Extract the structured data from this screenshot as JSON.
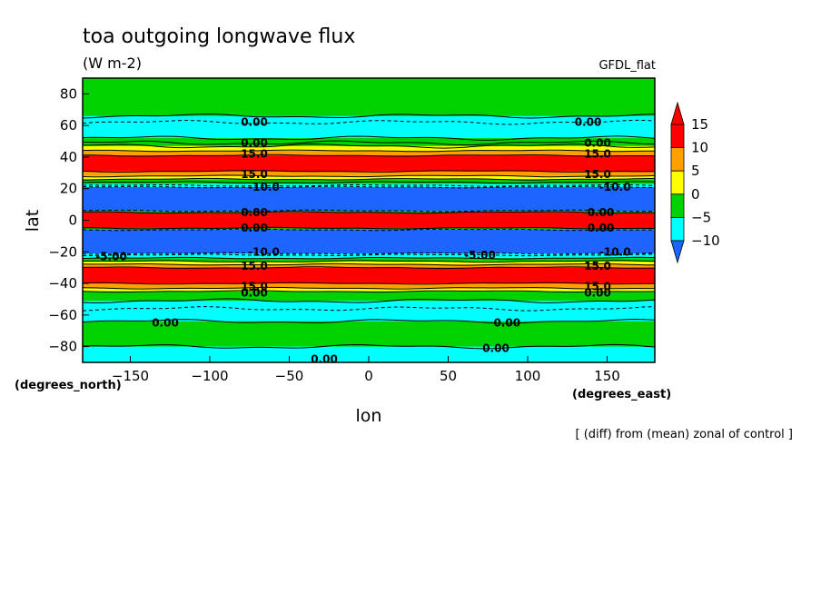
{
  "chart_data": {
    "type": "heatmap",
    "title": "toa outgoing longwave flux",
    "units": "(W m-2)",
    "model": "GFDL_flat",
    "xlabel": "lon",
    "ylabel": "lat",
    "x_units": "(degrees_east)",
    "y_units": "(degrees_north)",
    "note": "[ (diff) from (mean) zonal of control ]",
    "xlim": [
      -180,
      180
    ],
    "ylim": [
      -90,
      90
    ],
    "x_ticks": [
      -150,
      -100,
      -50,
      0,
      50,
      100,
      150
    ],
    "y_ticks": [
      -80,
      -60,
      -40,
      -20,
      0,
      20,
      40,
      60,
      80
    ],
    "colorbar": {
      "labels": [
        "15",
        "10",
        "5",
        "0",
        "-5",
        "-10"
      ],
      "levels": [
        -10,
        -5,
        0,
        5,
        10,
        15
      ],
      "colors": [
        "#1e64ff",
        "#00ffff",
        "#00d200",
        "#ffff00",
        "#ffa000",
        "#ff0000"
      ],
      "over_color": "#ff0000",
      "under_color": "#1e64ff"
    },
    "bands": [
      {
        "lat_from": 90,
        "lat_to": 66,
        "color": "#00d200"
      },
      {
        "lat_from": 66,
        "lat_to": 52,
        "color": "#00ffff"
      },
      {
        "lat_from": 52,
        "lat_to": 47,
        "color": "#00d200"
      },
      {
        "lat_from": 47,
        "lat_to": 44,
        "color": "#ffff00"
      },
      {
        "lat_from": 44,
        "lat_to": 41,
        "color": "#ffa000"
      },
      {
        "lat_from": 41,
        "lat_to": 31,
        "color": "#ff0000"
      },
      {
        "lat_from": 31,
        "lat_to": 28,
        "color": "#ffa000"
      },
      {
        "lat_from": 28,
        "lat_to": 26,
        "color": "#ffff00"
      },
      {
        "lat_from": 26,
        "lat_to": 23,
        "color": "#00d200"
      },
      {
        "lat_from": 23,
        "lat_to": 21,
        "color": "#00ffff"
      },
      {
        "lat_from": 21,
        "lat_to": 6,
        "color": "#1e64ff"
      },
      {
        "lat_from": 6,
        "lat_to": 5,
        "color": "#00d200"
      },
      {
        "lat_from": 5,
        "lat_to": -5,
        "color": "#ff0000"
      },
      {
        "lat_from": -5,
        "lat_to": -6,
        "color": "#00d200"
      },
      {
        "lat_from": -6,
        "lat_to": -21,
        "color": "#1e64ff"
      },
      {
        "lat_from": -21,
        "lat_to": -24,
        "color": "#00ffff"
      },
      {
        "lat_from": -24,
        "lat_to": -26,
        "color": "#00d200"
      },
      {
        "lat_from": -26,
        "lat_to": -28,
        "color": "#ffff00"
      },
      {
        "lat_from": -28,
        "lat_to": -30,
        "color": "#ffa000"
      },
      {
        "lat_from": -30,
        "lat_to": -40,
        "color": "#ff0000"
      },
      {
        "lat_from": -40,
        "lat_to": -43,
        "color": "#ffa000"
      },
      {
        "lat_from": -43,
        "lat_to": -45,
        "color": "#ffff00"
      },
      {
        "lat_from": -45,
        "lat_to": -51,
        "color": "#00d200"
      },
      {
        "lat_from": -51,
        "lat_to": -64,
        "color": "#00ffff"
      },
      {
        "lat_from": -64,
        "lat_to": -80,
        "color": "#00d200"
      },
      {
        "lat_from": -80,
        "lat_to": -90,
        "color": "#00ffff"
      }
    ],
    "contours": [
      {
        "lat": 66,
        "dashed": false
      },
      {
        "lat": 62,
        "dashed": true
      },
      {
        "lat": 52,
        "dashed": false
      },
      {
        "lat": 49,
        "dashed": false
      },
      {
        "lat": 47,
        "dashed": false
      },
      {
        "lat": 44,
        "dashed": false
      },
      {
        "lat": 41,
        "dashed": false
      },
      {
        "lat": 31,
        "dashed": false
      },
      {
        "lat": 28,
        "dashed": false
      },
      {
        "lat": 26,
        "dashed": false
      },
      {
        "lat": 24,
        "dashed": false
      },
      {
        "lat": 22,
        "dashed": true
      },
      {
        "lat": 21,
        "dashed": true
      },
      {
        "lat": 6,
        "dashed": true
      },
      {
        "lat": 5,
        "dashed": false
      },
      {
        "lat": -5,
        "dashed": false
      },
      {
        "lat": -6,
        "dashed": true
      },
      {
        "lat": -21,
        "dashed": true
      },
      {
        "lat": -22,
        "dashed": true
      },
      {
        "lat": -24,
        "dashed": false
      },
      {
        "lat": -26,
        "dashed": false
      },
      {
        "lat": -28,
        "dashed": false
      },
      {
        "lat": -30,
        "dashed": false
      },
      {
        "lat": -40,
        "dashed": false
      },
      {
        "lat": -43,
        "dashed": false
      },
      {
        "lat": -45,
        "dashed": false
      },
      {
        "lat": -51,
        "dashed": false
      },
      {
        "lat": -56,
        "dashed": true
      },
      {
        "lat": -64,
        "dashed": false
      },
      {
        "lat": -80,
        "dashed": false
      }
    ],
    "contour_labels": [
      {
        "text": "0.00",
        "lon": -72,
        "lat": 62
      },
      {
        "text": "0.00",
        "lon": 138,
        "lat": 62
      },
      {
        "text": "0.00",
        "lon": -72,
        "lat": 49
      },
      {
        "text": "0.00",
        "lon": 144,
        "lat": 49
      },
      {
        "text": "15.0",
        "lon": -72,
        "lat": 42
      },
      {
        "text": "15.0",
        "lon": 144,
        "lat": 42
      },
      {
        "text": "15.0",
        "lon": -72,
        "lat": 29
      },
      {
        "text": "15.0",
        "lon": 144,
        "lat": 29
      },
      {
        "text": "-10.0",
        "lon": -66,
        "lat": 21
      },
      {
        "text": "-10.0",
        "lon": 155,
        "lat": 21
      },
      {
        "text": "0.00",
        "lon": -72,
        "lat": 5
      },
      {
        "text": "0.00",
        "lon": 146,
        "lat": 5
      },
      {
        "text": "0.00",
        "lon": -72,
        "lat": -5
      },
      {
        "text": "0.00",
        "lon": 146,
        "lat": -5
      },
      {
        "text": "-10.0",
        "lon": -66,
        "lat": -20
      },
      {
        "text": "-10.0",
        "lon": 155,
        "lat": -20
      },
      {
        "text": "-5.00",
        "lon": 70,
        "lat": -22
      },
      {
        "text": "-5.00",
        "lon": -162,
        "lat": -23
      },
      {
        "text": "15.0",
        "lon": -72,
        "lat": -29
      },
      {
        "text": "15.0",
        "lon": 144,
        "lat": -29
      },
      {
        "text": "15.0",
        "lon": -72,
        "lat": -42
      },
      {
        "text": "15.0",
        "lon": 144,
        "lat": -42
      },
      {
        "text": "0.00",
        "lon": -72,
        "lat": -46
      },
      {
        "text": "0.00",
        "lon": 144,
        "lat": -46
      },
      {
        "text": "0.00",
        "lon": -128,
        "lat": -65
      },
      {
        "text": "0.00",
        "lon": 87,
        "lat": -65
      },
      {
        "text": "0.00",
        "lon": 80,
        "lat": -81
      },
      {
        "text": "0.00",
        "lon": -28,
        "lat": -88
      }
    ]
  }
}
